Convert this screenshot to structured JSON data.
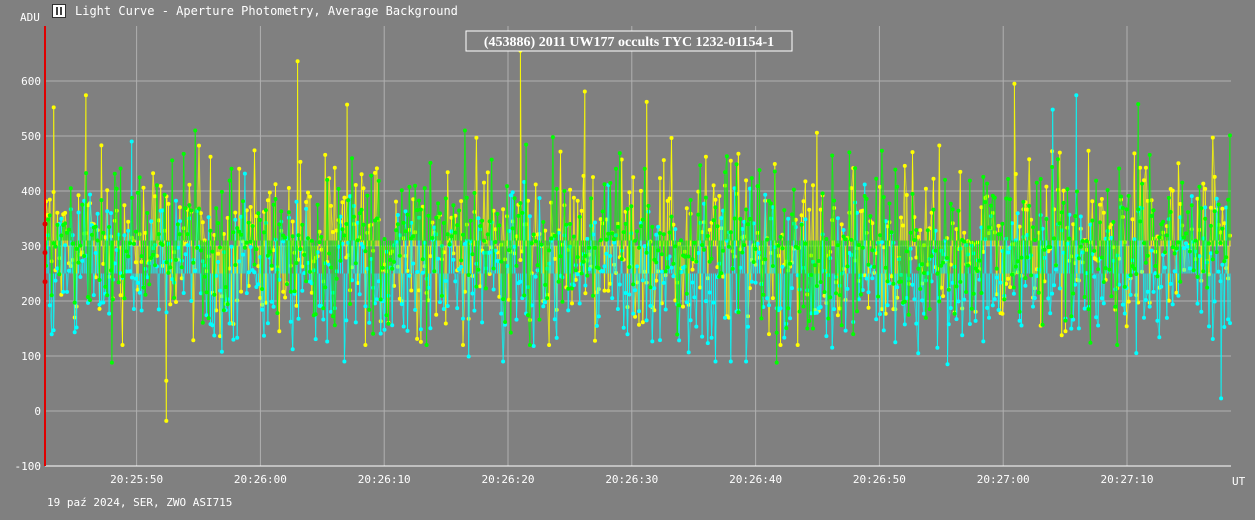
{
  "window": {
    "title": "Light Curve - Aperture Photometry, Average Background",
    "icon": "light-curve-app-icon"
  },
  "footer": {
    "info": "19 paź 2024, SER, ZWO ASI715"
  },
  "colors": {
    "background": "#808080",
    "grid": "#b0b0b0",
    "axis": "#ffffff",
    "marker": "#e00000",
    "series": [
      "#ffff00",
      "#00ffff",
      "#00ff00"
    ]
  },
  "chart_data": {
    "type": "line",
    "title": "(453886) 2011 UW177 occults TYC 1232-01154-1",
    "ylabel": "ADU",
    "xlabel": "UT",
    "ylim": [
      -100,
      700
    ],
    "yticks": [
      -100,
      0,
      100,
      200,
      300,
      400,
      500,
      600
    ],
    "xlim": [
      "20:25:42.6",
      "20:27:18.4"
    ],
    "xticks": [
      "20:25:50",
      "20:26:00",
      "20:26:10",
      "20:26:20",
      "20:26:30",
      "20:26:40",
      "20:26:50",
      "20:27:00",
      "20:27:10"
    ],
    "grid": true,
    "marker_time": "20:25:42.6",
    "series": [
      {
        "color": "#ffff00",
        "summary": {
          "median": 300,
          "typical_low": 160,
          "typical_high": 480
        },
        "notable_points": [
          {
            "t": "20:25:43.3",
            "y": 552
          },
          {
            "t": "20:25:45.9",
            "y": 574
          },
          {
            "t": "20:25:52.4",
            "y": -18
          },
          {
            "t": "20:25:52.4",
            "y": 55
          },
          {
            "t": "20:26:03.0",
            "y": 636
          },
          {
            "t": "20:26:07.0",
            "y": 557
          },
          {
            "t": "20:26:21.0",
            "y": 655
          },
          {
            "t": "20:26:26.2",
            "y": 581
          },
          {
            "t": "20:26:31.2",
            "y": 562
          },
          {
            "t": "20:27:00.9",
            "y": 595
          }
        ]
      },
      {
        "color": "#00ffff",
        "summary": {
          "median": 250,
          "typical_low": 130,
          "typical_high": 420
        },
        "notable_points": [
          {
            "t": "20:25:49.6",
            "y": 490
          },
          {
            "t": "20:26:55.5",
            "y": 85
          },
          {
            "t": "20:27:04.0",
            "y": 548
          },
          {
            "t": "20:27:05.9",
            "y": 574
          },
          {
            "t": "20:27:17.6",
            "y": 23
          }
        ]
      },
      {
        "color": "#00ff00",
        "summary": {
          "median": 310,
          "typical_low": 160,
          "typical_high": 470
        },
        "notable_points": [
          {
            "t": "20:25:48.0",
            "y": 88
          },
          {
            "t": "20:26:41.7",
            "y": 88
          },
          {
            "t": "20:27:10.9",
            "y": 558
          }
        ]
      }
    ]
  }
}
